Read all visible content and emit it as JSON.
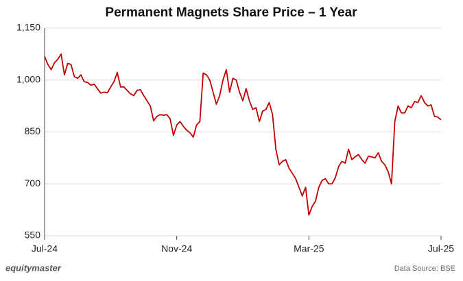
{
  "chart_data": {
    "type": "line",
    "title": "Permanent Magnets Share Price – 1 Year",
    "brand": "equitymaster",
    "source": "Data Source: BSE",
    "categories": [
      "Jul-24",
      null,
      null,
      null,
      null,
      null,
      null,
      null,
      null,
      null,
      null,
      null,
      null,
      null,
      null,
      null,
      null,
      null,
      null,
      null,
      null,
      null,
      null,
      null,
      null,
      null,
      null,
      null,
      null,
      null,
      null,
      null,
      null,
      null,
      null,
      null,
      null,
      null,
      null,
      null,
      "Nov-24",
      null,
      null,
      null,
      null,
      null,
      null,
      null,
      null,
      null,
      null,
      null,
      null,
      null,
      null,
      null,
      null,
      null,
      null,
      null,
      null,
      null,
      null,
      null,
      null,
      null,
      null,
      null,
      null,
      null,
      null,
      null,
      null,
      null,
      null,
      null,
      null,
      null,
      null,
      null,
      "Mar-25",
      null,
      null,
      null,
      null,
      null,
      null,
      null,
      null,
      null,
      null,
      null,
      null,
      null,
      null,
      null,
      null,
      null,
      null,
      null,
      null,
      null,
      null,
      null,
      null,
      null,
      null,
      null,
      null,
      null,
      null,
      null,
      null,
      null,
      null,
      null,
      null,
      null,
      null,
      null,
      "Jul-25"
    ],
    "series": [
      {
        "name": "Share Price",
        "color": "#c00000",
        "values": [
          1068,
          1045,
          1030,
          1050,
          1060,
          1075,
          1015,
          1048,
          1045,
          1010,
          1005,
          1015,
          995,
          993,
          985,
          988,
          975,
          962,
          965,
          963,
          980,
          995,
          1022,
          980,
          980,
          970,
          960,
          955,
          970,
          972,
          955,
          940,
          925,
          882,
          895,
          900,
          898,
          900,
          888,
          840,
          870,
          880,
          866,
          855,
          848,
          835,
          870,
          880,
          1020,
          1015,
          1000,
          965,
          930,
          955,
          1000,
          1030,
          965,
          1005,
          1000,
          965,
          940,
          975,
          940,
          915,
          920,
          880,
          910,
          915,
          935,
          900,
          800,
          755,
          765,
          770,
          745,
          730,
          715,
          690,
          665,
          690,
          610,
          635,
          650,
          690,
          710,
          715,
          700,
          700,
          718,
          750,
          765,
          760,
          800,
          770,
          778,
          785,
          770,
          760,
          780,
          778,
          775,
          790,
          765,
          755,
          735,
          700,
          880,
          925,
          905,
          905,
          925,
          920,
          938,
          935,
          955,
          935,
          925,
          928,
          895,
          893,
          885
        ]
      }
    ],
    "ylim": [
      550,
      1150
    ],
    "yticks": [
      550,
      700,
      850,
      {
        "value": 1000,
        "label": "1,000"
      },
      {
        "value": 1150,
        "label": "1,150"
      }
    ],
    "grid": true
  }
}
